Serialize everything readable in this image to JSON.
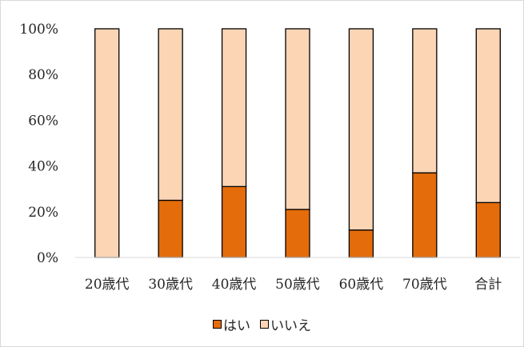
{
  "chart_data": {
    "type": "bar",
    "stacked": true,
    "categories": [
      "20歳代",
      "30歳代",
      "40歳代",
      "50歳代",
      "60歳代",
      "70歳代",
      "合計"
    ],
    "series": [
      {
        "name": "はい",
        "color": "#e46c0a",
        "values": [
          0,
          25,
          31,
          21,
          12,
          37,
          24
        ]
      },
      {
        "name": "いいえ",
        "color": "#fcd5b5",
        "values": [
          100,
          75,
          69,
          79,
          88,
          63,
          76
        ]
      }
    ],
    "ylim": [
      0,
      100
    ],
    "yticks": [
      "0%",
      "20%",
      "40%",
      "60%",
      "80%",
      "100%"
    ],
    "legend": "bottom",
    "grid": false
  }
}
